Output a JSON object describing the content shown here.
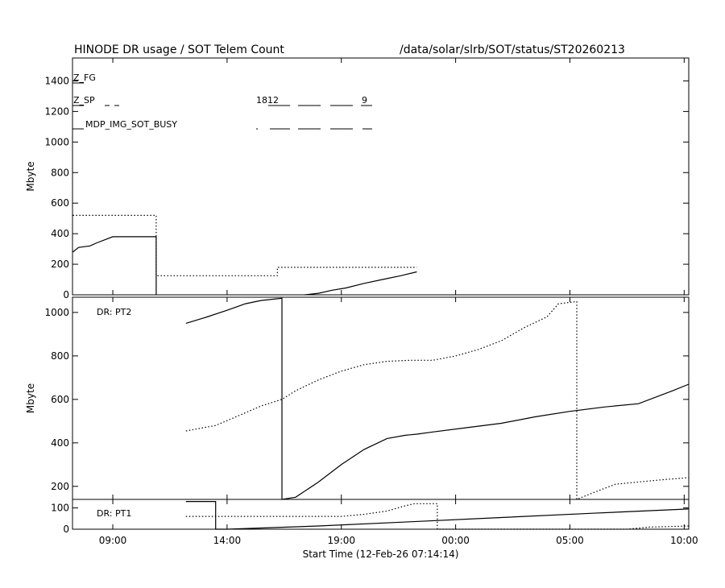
{
  "header": {
    "title": "HINODE DR usage / SOT Telem Count",
    "path": "/data/solar/slrb/SOT/status/ST20260213"
  },
  "colors": {
    "foreground": "#000000",
    "background": "#ffffff"
  },
  "chart_data": [
    {
      "type": "line",
      "panel": "top",
      "ylabel": "Mbyte",
      "ylim": [
        0,
        1550
      ],
      "yticks": [
        "0",
        "200",
        "400",
        "600",
        "800",
        "1000",
        "1200",
        "1400"
      ],
      "ytick_values": [
        0,
        200,
        400,
        600,
        800,
        1000,
        1200,
        1400
      ],
      "annotations": [
        "Z_FG",
        "Z_SP",
        "MDP_IMG_SOT_BUSY",
        "1812",
        "9"
      ],
      "series": [
        {
          "style": "solid",
          "x": [
            7.25,
            7.5,
            8.0,
            8.3,
            9.0,
            9.5,
            10.9,
            10.9
          ],
          "y": [
            280,
            310,
            320,
            340,
            380,
            380,
            380,
            0
          ]
        },
        {
          "style": "dotted",
          "x": [
            7.25,
            10.9,
            10.9,
            16.2,
            16.2,
            22.3
          ],
          "y": [
            520,
            520,
            125,
            125,
            180,
            180
          ]
        },
        {
          "style": "solid",
          "x": [
            17.4,
            18.0,
            18.6,
            19.2,
            20.0,
            20.8,
            21.6,
            22.3
          ],
          "y": [
            0,
            10,
            30,
            45,
            75,
            100,
            125,
            150
          ]
        }
      ]
    },
    {
      "type": "line",
      "panel": "middle",
      "annotation": "DR: PT2",
      "ylabel": "Mbyte",
      "ylim": [
        140,
        1070
      ],
      "yticks": [
        "200",
        "400",
        "600",
        "800",
        "1000"
      ],
      "ytick_values": [
        200,
        400,
        600,
        800,
        1000
      ],
      "series": [
        {
          "style": "solid",
          "x": [
            12.2,
            13.0,
            14.0,
            14.8,
            15.5,
            16.4,
            16.4,
            17.0,
            18.0,
            19.0,
            20.0,
            21.0,
            21.8,
            22.3,
            23.0,
            24.5,
            26.0,
            27.5,
            29.0,
            30.5,
            32.0,
            33.5,
            34.2
          ],
          "y": [
            950,
            975,
            1010,
            1040,
            1055,
            1065,
            140,
            150,
            220,
            300,
            370,
            420,
            435,
            440,
            450,
            470,
            490,
            520,
            545,
            565,
            580,
            640,
            670
          ]
        },
        {
          "style": "dotted",
          "x": [
            12.2,
            13.5,
            14.5,
            15.5,
            16.4,
            17.0,
            18.0,
            19.0,
            20.0,
            21.0,
            22.0,
            23.0,
            24.0,
            25.0,
            26.0,
            27.0,
            28.0,
            28.5,
            29.3,
            29.3,
            30.0,
            31.0,
            32.0,
            33.0,
            34.2
          ],
          "y": [
            455,
            480,
            525,
            570,
            600,
            640,
            690,
            730,
            760,
            775,
            780,
            780,
            800,
            830,
            870,
            930,
            980,
            1040,
            1050,
            140,
            170,
            210,
            220,
            230,
            240
          ]
        }
      ]
    },
    {
      "type": "line",
      "panel": "bottom",
      "annotation": "DR: PT1",
      "ylim": [
        0,
        140
      ],
      "yticks": [
        "0",
        "100"
      ],
      "ytick_values": [
        0,
        100
      ],
      "series": [
        {
          "style": "solid",
          "x": [
            12.2,
            13.5,
            13.5,
            14.0,
            18.0,
            22.0,
            26.0,
            30.0,
            34.2
          ],
          "y": [
            130,
            130,
            0,
            0,
            15,
            35,
            55,
            75,
            95
          ]
        },
        {
          "style": "dotted",
          "x": [
            12.2,
            19.0,
            20.0,
            21.0,
            21.8,
            22.2,
            22.8,
            23.2,
            23.2,
            31.5,
            32.5,
            34.2
          ],
          "y": [
            60,
            60,
            70,
            85,
            110,
            120,
            120,
            120,
            0,
            0,
            10,
            15
          ]
        }
      ]
    }
  ],
  "x_axis": {
    "xlabel": "Start Time (12-Feb-26 07:14:14)",
    "xlim": [
      7.2367,
      34.2
    ],
    "ticks": [
      "09:00",
      "14:00",
      "19:00",
      "00:00",
      "05:00",
      "10:00"
    ],
    "tick_hours": [
      9,
      14,
      19,
      24,
      29,
      34
    ]
  }
}
